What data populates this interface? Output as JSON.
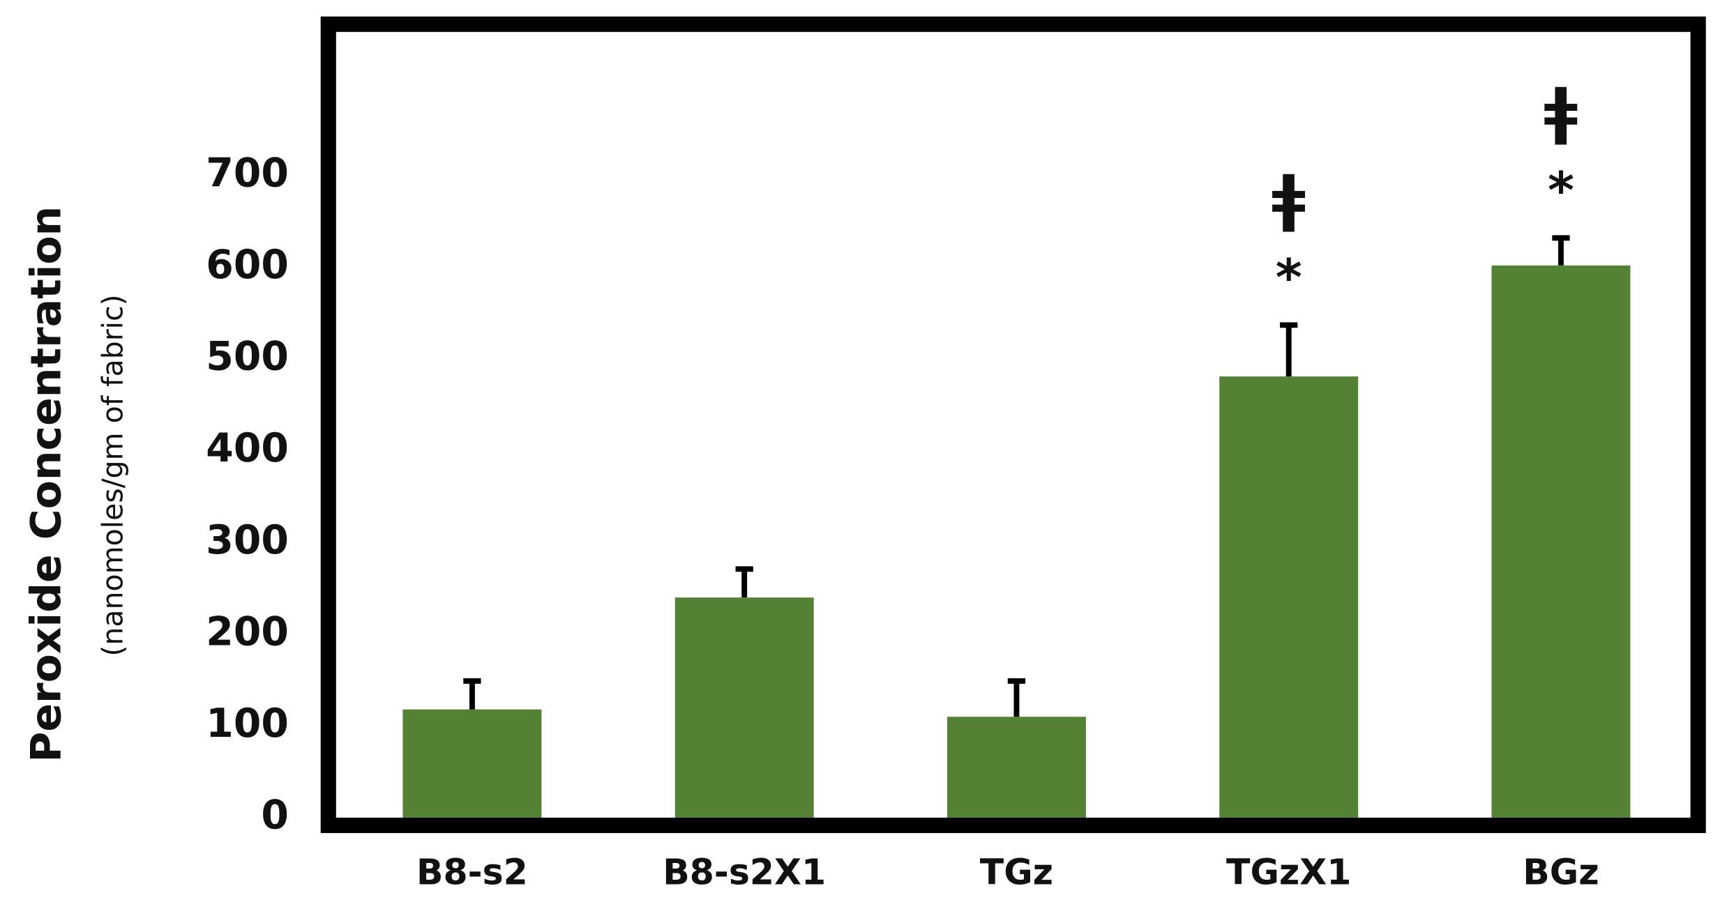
{
  "chart_data": {
    "type": "bar",
    "y_label": "Peroxide Concentration",
    "y_label_sub": "(nanomoles/gm of fabric)",
    "categories": [
      "B8-s2",
      "B8-s2X1",
      "TGz",
      "TGzX1",
      "BGz"
    ],
    "values": [
      118,
      240,
      110,
      481,
      602
    ],
    "errors": [
      31,
      31,
      39,
      56,
      30
    ],
    "color": "#548235",
    "ylim": [
      0,
      865
    ],
    "yticks": [
      0,
      100,
      200,
      300,
      400,
      500,
      600,
      700
    ],
    "grid": false,
    "annotations": [
      {
        "x": "TGzX1",
        "text": "*"
      },
      {
        "x": "TGzX1",
        "text": "ǂ"
      },
      {
        "x": "BGz",
        "text": "*"
      },
      {
        "x": "BGz",
        "text": "ǂ"
      }
    ]
  }
}
